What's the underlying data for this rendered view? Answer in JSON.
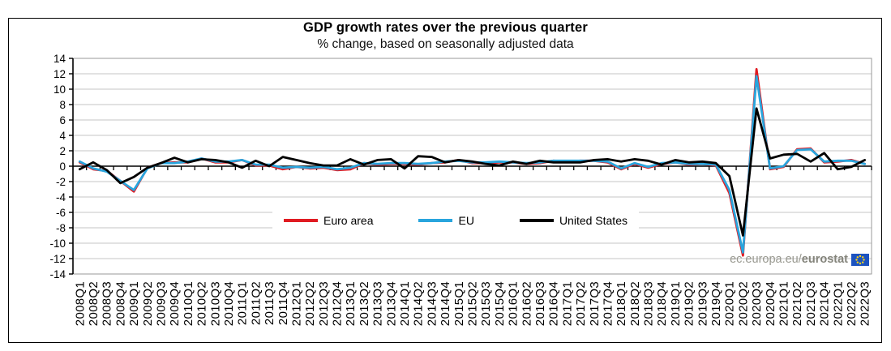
{
  "branding": {
    "watermark_prefix": "ec.europa.eu/",
    "watermark_bold": "eurostat",
    "watermark_color": "#98988f",
    "flag_color": "#1c53c0",
    "flag_star_color": "#ffd617"
  },
  "icons": {
    "watermark_flag": "eu-flag"
  },
  "chart_data": {
    "type": "line",
    "title": "GDP growth rates over the previous quarter",
    "subtitle": "% change, based on seasonally adjusted data",
    "ylim": [
      -14,
      14
    ],
    "ytick_step": 2,
    "grid": true,
    "legend_position": "inside-bottom-center",
    "gridline_color": "#c6c6c6",
    "axis_color": "#000000",
    "categories": [
      "2008Q1",
      "2008Q2",
      "2008Q3",
      "2008Q4",
      "2009Q1",
      "2009Q2",
      "2009Q3",
      "2009Q4",
      "2010Q1",
      "2010Q2",
      "2010Q3",
      "2010Q4",
      "2011Q1",
      "2011Q2",
      "2011Q3",
      "2011Q4",
      "2012Q1",
      "2012Q2",
      "2012Q3",
      "2012Q4",
      "2013Q1",
      "2013Q2",
      "2013Q3",
      "2013Q4",
      "2014Q1",
      "2014Q2",
      "2014Q3",
      "2014Q4",
      "2015Q1",
      "2015Q2",
      "2015Q3",
      "2015Q4",
      "2016Q1",
      "2016Q2",
      "2016Q3",
      "2016Q4",
      "2017Q1",
      "2017Q2",
      "2017Q3",
      "2017Q4",
      "2018Q1",
      "2018Q2",
      "2018Q3",
      "2018Q4",
      "2019Q1",
      "2019Q2",
      "2019Q3",
      "2019Q4",
      "2020Q1",
      "2020Q2",
      "2020Q3",
      "2020Q4",
      "2021Q1",
      "2021Q2",
      "2021Q3",
      "2021Q4",
      "2022Q1",
      "2022Q2",
      "2022Q3"
    ],
    "series": [
      {
        "name": "Euro area",
        "color": "#e01b22",
        "values": [
          0.5,
          -0.4,
          -0.6,
          -1.9,
          -3.3,
          -0.2,
          0.4,
          0.5,
          0.5,
          1.0,
          0.5,
          0.5,
          0.8,
          0.1,
          0.1,
          -0.4,
          -0.1,
          -0.3,
          -0.2,
          -0.5,
          -0.4,
          0.4,
          0.2,
          0.3,
          0.3,
          0.2,
          0.4,
          0.5,
          0.8,
          0.4,
          0.4,
          0.5,
          0.5,
          0.3,
          0.4,
          0.7,
          0.6,
          0.7,
          0.7,
          0.5,
          -0.4,
          0.3,
          -0.2,
          0.3,
          0.5,
          0.2,
          0.3,
          0.1,
          -3.5,
          -11.6,
          12.6,
          -0.4,
          -0.1,
          2.2,
          2.3,
          0.5,
          0.6,
          0.8,
          0.3
        ]
      },
      {
        "name": "EU",
        "color": "#29a5dd",
        "values": [
          0.6,
          -0.3,
          -0.7,
          -1.9,
          -3.1,
          -0.3,
          0.4,
          0.4,
          0.6,
          1.0,
          0.6,
          0.6,
          0.8,
          0.2,
          0.2,
          -0.2,
          -0.1,
          -0.2,
          -0.1,
          -0.4,
          -0.2,
          0.4,
          0.3,
          0.4,
          0.4,
          0.3,
          0.4,
          0.6,
          0.7,
          0.5,
          0.5,
          0.6,
          0.5,
          0.4,
          0.5,
          0.7,
          0.7,
          0.7,
          0.7,
          0.6,
          -0.3,
          0.4,
          -0.1,
          0.4,
          0.5,
          0.3,
          0.3,
          0.2,
          -3.1,
          -11.2,
          11.7,
          -0.3,
          0.0,
          2.1,
          2.2,
          0.6,
          0.7,
          0.7,
          0.3
        ]
      },
      {
        "name": "United States",
        "color": "#000000",
        "values": [
          -0.4,
          0.5,
          -0.5,
          -2.2,
          -1.4,
          -0.2,
          0.4,
          1.1,
          0.5,
          0.9,
          0.8,
          0.5,
          -0.2,
          0.7,
          0.0,
          1.2,
          0.8,
          0.4,
          0.1,
          0.1,
          0.9,
          0.2,
          0.8,
          0.9,
          -0.3,
          1.3,
          1.2,
          0.5,
          0.8,
          0.6,
          0.3,
          0.1,
          0.6,
          0.3,
          0.7,
          0.5,
          0.5,
          0.5,
          0.8,
          0.9,
          0.6,
          0.9,
          0.7,
          0.2,
          0.8,
          0.5,
          0.6,
          0.4,
          -1.3,
          -9.0,
          7.5,
          1.0,
          1.5,
          1.6,
          0.6,
          1.7,
          -0.4,
          -0.1,
          0.8
        ]
      }
    ]
  }
}
